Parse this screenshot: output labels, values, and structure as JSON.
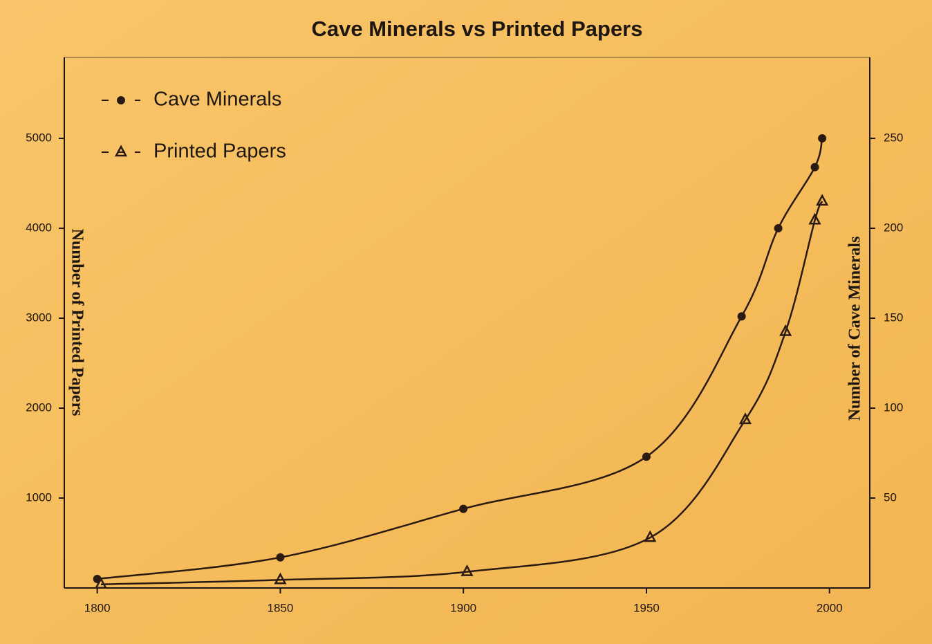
{
  "chart_data": {
    "type": "line",
    "title": "Cave Minerals vs Printed Papers",
    "ylabel": "Number of Printed Papers",
    "y2label": "Number of Cave Minerals",
    "xlim": [
      1791,
      2011
    ],
    "xticks": [
      1800,
      1850,
      1900,
      1950,
      2000
    ],
    "ylim": [
      0,
      5900
    ],
    "yticks": [
      1000,
      2000,
      3000,
      4000,
      5000
    ],
    "y2lim": [
      0,
      295
    ],
    "y2ticks": [
      50,
      100,
      150,
      200,
      250
    ],
    "legend": "upper left",
    "series": [
      {
        "name": "Cave Minerals",
        "color": "#2a1a12",
        "marker": "circle",
        "axis": "y2",
        "x": [
          1800,
          1850,
          1900,
          1950,
          1976,
          1986,
          1996,
          1998
        ],
        "values": [
          5,
          17,
          44,
          73,
          151,
          200,
          234,
          250
        ]
      },
      {
        "name": "Printed Papers",
        "color": "#2a1a12",
        "marker": "triangle",
        "axis": "y",
        "x": [
          1801,
          1850,
          1901,
          1951,
          1977,
          1988,
          1996,
          1998
        ],
        "values": [
          40,
          90,
          180,
          560,
          1870,
          2850,
          4090,
          4300
        ]
      }
    ]
  }
}
